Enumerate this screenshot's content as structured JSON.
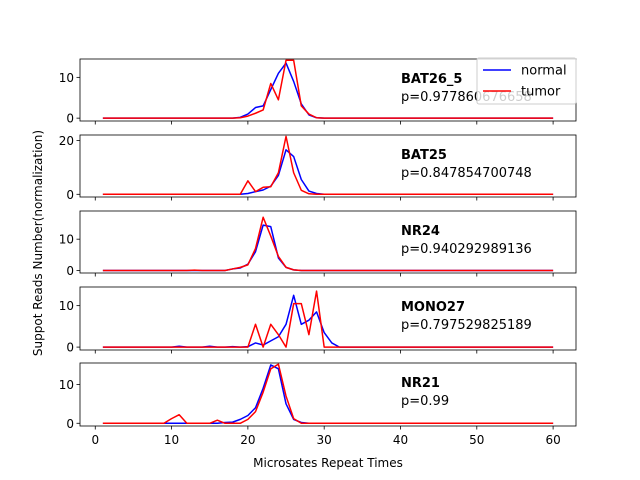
{
  "figure": {
    "ylabel": "Suppot Reads Number(normalization)",
    "xlabel": "Microsates Repeat Times",
    "x_ticks": [
      0,
      10,
      20,
      30,
      40,
      50,
      60
    ],
    "legend": {
      "placement": "top-right",
      "entries": [
        "normal",
        "tumor"
      ]
    },
    "colors": {
      "normal": "#0000ff",
      "tumor": "#ff0000",
      "axes": "#000000"
    }
  },
  "chart_data": [
    {
      "type": "line",
      "title": "BAT26_5",
      "annotation": "p=0.977860676658",
      "xlim": [
        -2,
        63
      ],
      "ylim": [
        -0.7,
        14.5
      ],
      "yticks": [
        0,
        10
      ],
      "x": [
        1,
        2,
        3,
        4,
        5,
        6,
        7,
        8,
        9,
        10,
        11,
        12,
        13,
        14,
        15,
        16,
        17,
        18,
        19,
        20,
        21,
        22,
        23,
        24,
        25,
        26,
        27,
        28,
        29,
        30,
        31,
        32,
        33,
        34,
        35,
        36,
        37,
        38,
        39,
        40,
        41,
        42,
        43,
        44,
        45,
        46,
        47,
        48,
        49,
        50,
        51,
        52,
        53,
        54,
        55,
        56,
        57,
        58,
        59,
        60
      ],
      "series": [
        {
          "name": "normal",
          "values": [
            0,
            0,
            0,
            0,
            0,
            0,
            0,
            0,
            0,
            0,
            0,
            0,
            0,
            0,
            0,
            0,
            0,
            0,
            0.2,
            1,
            2.6,
            3,
            7,
            11,
            13.5,
            9,
            3.5,
            0.8,
            0.1,
            0,
            0,
            0,
            0,
            0,
            0,
            0,
            0,
            0,
            0,
            0,
            0,
            0,
            0,
            0,
            0,
            0,
            0,
            0,
            0,
            0,
            0,
            0,
            0,
            0,
            0,
            0,
            0,
            0,
            0,
            0
          ]
        },
        {
          "name": "tumor",
          "values": [
            0,
            0,
            0,
            0,
            0,
            0,
            0,
            0,
            0,
            0,
            0,
            0,
            0,
            0,
            0,
            0,
            0,
            0,
            0.1,
            0.5,
            1.2,
            2,
            8.5,
            4.5,
            14.2,
            14.2,
            3,
            1,
            0.1,
            0,
            0,
            0,
            0,
            0,
            0,
            0,
            0,
            0,
            0,
            0,
            0,
            0,
            0,
            0,
            0,
            0,
            0,
            0,
            0,
            0,
            0,
            0,
            0,
            0,
            0,
            0,
            0,
            0,
            0,
            0
          ]
        }
      ]
    },
    {
      "type": "line",
      "title": "BAT25",
      "annotation": "p=0.847854700748",
      "xlim": [
        -2,
        63
      ],
      "ylim": [
        -1,
        22
      ],
      "yticks": [
        0,
        20
      ],
      "x": [
        1,
        2,
        3,
        4,
        5,
        6,
        7,
        8,
        9,
        10,
        11,
        12,
        13,
        14,
        15,
        16,
        17,
        18,
        19,
        20,
        21,
        22,
        23,
        24,
        25,
        26,
        27,
        28,
        29,
        30,
        31,
        32,
        33,
        34,
        35,
        36,
        37,
        38,
        39,
        40,
        41,
        42,
        43,
        44,
        45,
        46,
        47,
        48,
        49,
        50,
        51,
        52,
        53,
        54,
        55,
        56,
        57,
        58,
        59,
        60
      ],
      "series": [
        {
          "name": "normal",
          "values": [
            0,
            0,
            0,
            0,
            0,
            0,
            0,
            0,
            0,
            0,
            0,
            0,
            0,
            0,
            0,
            0,
            0,
            0,
            0,
            0.3,
            1,
            1.6,
            3,
            7,
            16.5,
            14,
            5.5,
            1.2,
            0.3,
            0,
            0,
            0,
            0,
            0,
            0,
            0,
            0,
            0,
            0,
            0,
            0,
            0,
            0,
            0,
            0,
            0,
            0,
            0,
            0,
            0,
            0,
            0,
            0,
            0,
            0,
            0,
            0,
            0,
            0,
            0
          ]
        },
        {
          "name": "tumor",
          "values": [
            0,
            0,
            0,
            0,
            0,
            0,
            0,
            0,
            0,
            0,
            0,
            0,
            0,
            0,
            0,
            0,
            0,
            0,
            0,
            5,
            1,
            2.6,
            2.8,
            8,
            21.5,
            8,
            1.5,
            0.2,
            0,
            0,
            0,
            0,
            0,
            0,
            0,
            0,
            0,
            0,
            0,
            0,
            0,
            0,
            0,
            0,
            0,
            0,
            0,
            0,
            0,
            0,
            0,
            0,
            0,
            0,
            0,
            0,
            0,
            0,
            0,
            0
          ]
        }
      ]
    },
    {
      "type": "line",
      "title": "NR24",
      "annotation": "p=0.940292989136",
      "xlim": [
        -2,
        63
      ],
      "ylim": [
        -0.8,
        19
      ],
      "yticks": [
        0,
        10
      ],
      "x": [
        1,
        2,
        3,
        4,
        5,
        6,
        7,
        8,
        9,
        10,
        11,
        12,
        13,
        14,
        15,
        16,
        17,
        18,
        19,
        20,
        21,
        22,
        23,
        24,
        25,
        26,
        27,
        28,
        29,
        30,
        31,
        32,
        33,
        34,
        35,
        36,
        37,
        38,
        39,
        40,
        41,
        42,
        43,
        44,
        45,
        46,
        47,
        48,
        49,
        50,
        51,
        52,
        53,
        54,
        55,
        56,
        57,
        58,
        59,
        60
      ],
      "series": [
        {
          "name": "normal",
          "values": [
            0,
            0,
            0,
            0,
            0,
            0,
            0,
            0,
            0,
            0,
            0,
            0,
            0,
            0,
            0,
            0,
            0,
            0.5,
            0.8,
            2,
            6,
            14.5,
            14,
            4,
            1,
            0.2,
            0,
            0,
            0,
            0,
            0,
            0,
            0,
            0,
            0,
            0,
            0,
            0,
            0,
            0,
            0,
            0,
            0,
            0,
            0,
            0,
            0,
            0,
            0,
            0,
            0,
            0,
            0,
            0,
            0,
            0,
            0,
            0,
            0,
            0
          ]
        },
        {
          "name": "tumor",
          "values": [
            0,
            0,
            0,
            0,
            0,
            0,
            0,
            0,
            0,
            0,
            0,
            0,
            0.1,
            0,
            0,
            0,
            0,
            0.5,
            1,
            1.8,
            7,
            17,
            11,
            4.5,
            1,
            0.2,
            0,
            0,
            0,
            0,
            0,
            0,
            0,
            0,
            0,
            0,
            0,
            0,
            0,
            0,
            0,
            0,
            0,
            0,
            0,
            0,
            0,
            0,
            0,
            0,
            0,
            0,
            0,
            0,
            0,
            0,
            0,
            0,
            0,
            0
          ]
        }
      ]
    },
    {
      "type": "line",
      "title": "MONO27",
      "annotation": "p=0.797529825189",
      "xlim": [
        -2,
        63
      ],
      "ylim": [
        -0.7,
        14.5
      ],
      "yticks": [
        0,
        10
      ],
      "x": [
        1,
        2,
        3,
        4,
        5,
        6,
        7,
        8,
        9,
        10,
        11,
        12,
        13,
        14,
        15,
        16,
        17,
        18,
        19,
        20,
        21,
        22,
        23,
        24,
        25,
        26,
        27,
        28,
        29,
        30,
        31,
        32,
        33,
        34,
        35,
        36,
        37,
        38,
        39,
        40,
        41,
        42,
        43,
        44,
        45,
        46,
        47,
        48,
        49,
        50,
        51,
        52,
        53,
        54,
        55,
        56,
        57,
        58,
        59,
        60
      ],
      "series": [
        {
          "name": "normal",
          "values": [
            0,
            0,
            0,
            0,
            0,
            0,
            0,
            0,
            0,
            0,
            0.2,
            0,
            0,
            0,
            0.2,
            0,
            0,
            0.1,
            0,
            0.1,
            1,
            0.5,
            1.5,
            2.5,
            5.5,
            12.5,
            5.5,
            6.5,
            8.5,
            3.5,
            1,
            0,
            0,
            0,
            0,
            0,
            0,
            0,
            0,
            0,
            0,
            0,
            0,
            0,
            0,
            0,
            0,
            0,
            0,
            0,
            0,
            0,
            0,
            0,
            0,
            0,
            0,
            0,
            0,
            0
          ]
        },
        {
          "name": "tumor",
          "values": [
            0,
            0,
            0,
            0,
            0,
            0,
            0,
            0,
            0,
            0,
            0,
            0,
            0,
            0,
            0,
            0,
            0,
            0,
            0,
            0,
            5.5,
            0,
            5.5,
            3,
            0,
            10.5,
            10.5,
            3,
            13.5,
            0,
            0,
            0,
            0,
            0,
            0,
            0,
            0,
            0,
            0,
            0,
            0,
            0,
            0,
            0,
            0,
            0,
            0,
            0,
            0,
            0,
            0,
            0,
            0,
            0,
            0,
            0,
            0,
            0,
            0,
            0
          ]
        }
      ]
    },
    {
      "type": "line",
      "title": "NR21",
      "annotation": "p=0.99",
      "xlim": [
        -2,
        63
      ],
      "ylim": [
        -0.7,
        15.5
      ],
      "yticks": [
        0,
        10
      ],
      "x": [
        1,
        2,
        3,
        4,
        5,
        6,
        7,
        8,
        9,
        10,
        11,
        12,
        13,
        14,
        15,
        16,
        17,
        18,
        19,
        20,
        21,
        22,
        23,
        24,
        25,
        26,
        27,
        28,
        29,
        30,
        31,
        32,
        33,
        34,
        35,
        36,
        37,
        38,
        39,
        40,
        41,
        42,
        43,
        44,
        45,
        46,
        47,
        48,
        49,
        50,
        51,
        52,
        53,
        54,
        55,
        56,
        57,
        58,
        59,
        60
      ],
      "series": [
        {
          "name": "normal",
          "values": [
            0,
            0,
            0,
            0,
            0,
            0,
            0,
            0,
            0,
            0,
            0,
            0,
            0,
            0,
            0,
            0,
            0.2,
            0.3,
            1,
            2,
            4,
            9,
            15,
            14,
            5,
            1,
            0.2,
            0,
            0,
            0,
            0,
            0,
            0,
            0,
            0,
            0,
            0,
            0,
            0,
            0,
            0,
            0,
            0,
            0,
            0,
            0,
            0,
            0,
            0,
            0,
            0,
            0,
            0,
            0,
            0,
            0,
            0,
            0,
            0,
            0
          ]
        },
        {
          "name": "tumor",
          "values": [
            0,
            0,
            0,
            0,
            0,
            0,
            0,
            0,
            0,
            1.2,
            2.2,
            0,
            0,
            0,
            0,
            0.8,
            0,
            0,
            0,
            1,
            3,
            8,
            14,
            15.2,
            7,
            1.2,
            0,
            0,
            0,
            0,
            0,
            0,
            0,
            0,
            0,
            0,
            0,
            0,
            0,
            0,
            0,
            0,
            0,
            0,
            0,
            0,
            0,
            0,
            0,
            0,
            0,
            0,
            0,
            0,
            0,
            0,
            0,
            0,
            0,
            0
          ]
        }
      ]
    }
  ]
}
